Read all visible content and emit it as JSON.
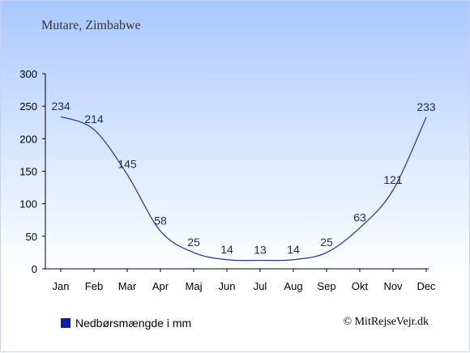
{
  "title": "Mutare, Zimbabwe",
  "legend_label": "Nedbørsmængde i mm",
  "credit": "© MitRejseVejr.dk",
  "colors": {
    "line": "#1f2fb0",
    "swatch": "#0d1fa3",
    "axis": "#000000"
  },
  "chart_data": {
    "type": "line",
    "categories": [
      "Jan",
      "Feb",
      "Mar",
      "Apr",
      "Maj",
      "Jun",
      "Jul",
      "Aug",
      "Sep",
      "Okt",
      "Nov",
      "Dec"
    ],
    "series": [
      {
        "name": "Nedbørsmængde i mm",
        "values": [
          234,
          214,
          145,
          58,
          25,
          14,
          13,
          14,
          25,
          63,
          121,
          233
        ]
      }
    ],
    "yticks": [
      0,
      50,
      100,
      150,
      200,
      250,
      300
    ],
    "ylim": [
      0,
      300
    ],
    "grid": false,
    "legend": "bottom-left"
  }
}
